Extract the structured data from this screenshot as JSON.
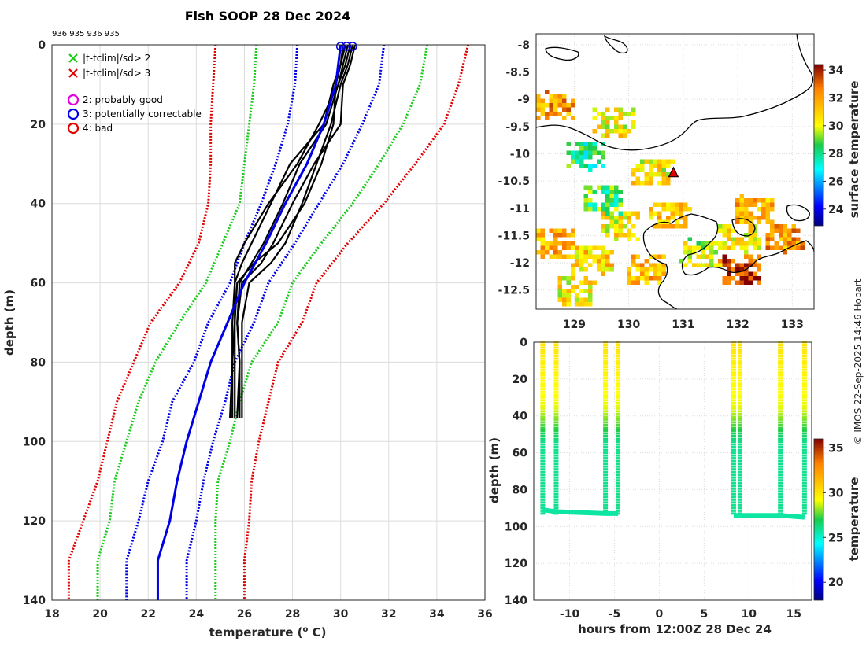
{
  "chart_data": [
    {
      "id": "profiles",
      "type": "line",
      "title": "Fish SOOP 28 Dec 2024",
      "subtitle": "936 935 936 935",
      "xlabel": "temperature (",
      "xlabel_sup": "o",
      "xlabel_end": " C)",
      "ylabel": "depth (m)",
      "xlim": [
        18,
        36
      ],
      "ylim": [
        0,
        140
      ],
      "xticks": [
        "18",
        "20",
        "22",
        "24",
        "26",
        "28",
        "30",
        "32",
        "34",
        "36"
      ],
      "yticks": [
        "0",
        "20",
        "40",
        "60",
        "80",
        "100",
        "120",
        "140"
      ],
      "legend": [
        {
          "label": "|t-tclim|/sd> 2",
          "marker": "x",
          "color": "#19cc19"
        },
        {
          "label": "|t-tclim|/sd> 3",
          "marker": "x",
          "color": "#e00000"
        },
        {
          "label": "2: probably good",
          "marker": "o",
          "color": "#e000e0"
        },
        {
          "label": "3: potentially correctable",
          "marker": "o",
          "color": "#0000e6"
        },
        {
          "label": "4: bad",
          "marker": "o",
          "color": "#e00000"
        }
      ],
      "climatology": {
        "depths": [
          0,
          10,
          20,
          30,
          40,
          50,
          60,
          70,
          80,
          90,
          100,
          110,
          120,
          130,
          140
        ],
        "mean": [
          30.0,
          29.8,
          29.3,
          28.6,
          27.7,
          26.9,
          26.0,
          25.3,
          24.6,
          24.1,
          23.6,
          23.2,
          22.9,
          22.4,
          22.4
        ],
        "series": [
          {
            "name": "-3sd",
            "color": "#e00000",
            "values": [
              24.8,
              24.7,
              24.6,
              24.6,
              24.5,
              24.1,
              23.3,
              22.1,
              21.4,
              20.7,
              20.3,
              19.9,
              19.3,
              18.7,
              18.7
            ]
          },
          {
            "name": "-2sd",
            "color": "#19cc19",
            "values": [
              26.5,
              26.4,
              26.2,
              26.0,
              25.8,
              25.1,
              24.4,
              23.3,
              22.3,
              21.6,
              21.1,
              20.6,
              20.4,
              19.9,
              19.9
            ]
          },
          {
            "name": "-1sd",
            "color": "#0000e6",
            "values": [
              28.2,
              28.1,
              27.8,
              27.3,
              26.7,
              26.0,
              25.4,
              24.5,
              23.9,
              23.0,
              22.6,
              22.0,
              21.6,
              21.1,
              21.1
            ]
          },
          {
            "name": "+1sd",
            "color": "#0000e6",
            "values": [
              31.8,
              31.6,
              30.9,
              30.1,
              29.1,
              28.1,
              27.0,
              26.4,
              25.6,
              25.2,
              24.7,
              24.3,
              24.0,
              23.6,
              23.6
            ]
          },
          {
            "name": "+2sd",
            "color": "#19cc19",
            "values": [
              33.6,
              33.3,
              32.6,
              31.6,
              30.5,
              29.2,
              28.0,
              27.4,
              26.3,
              25.8,
              25.4,
              24.9,
              24.8,
              24.8,
              24.8
            ]
          },
          {
            "name": "+3sd",
            "color": "#e00000",
            "values": [
              35.3,
              34.9,
              34.3,
              33.1,
              31.8,
              30.3,
              29.0,
              28.4,
              27.4,
              27.0,
              26.6,
              26.3,
              26.2,
              26.0,
              26.0
            ]
          }
        ]
      },
      "profiles": [
        {
          "depths": [
            0,
            5,
            10,
            20,
            30,
            40,
            50,
            55,
            60,
            70,
            80,
            94
          ],
          "values": [
            30.5,
            30.3,
            30.0,
            29.6,
            29.0,
            28.4,
            27.7,
            27.1,
            26.2,
            25.9,
            25.9,
            25.9
          ]
        },
        {
          "depths": [
            0,
            5,
            10,
            20,
            30,
            40,
            50,
            55,
            60,
            70,
            80,
            94
          ],
          "values": [
            30.3,
            30.1,
            29.9,
            29.4,
            28.3,
            27.6,
            26.8,
            26.3,
            25.8,
            25.7,
            25.8,
            25.7
          ]
        },
        {
          "depths": [
            0,
            5,
            10,
            20,
            30,
            40,
            50,
            55,
            60,
            70,
            80,
            94
          ],
          "values": [
            30.1,
            30.0,
            29.7,
            29.3,
            27.9,
            27.1,
            26.3,
            25.9,
            25.6,
            25.6,
            25.6,
            25.6
          ]
        },
        {
          "depths": [
            0,
            5,
            10,
            20,
            30,
            40,
            50,
            55,
            60,
            70,
            80,
            94
          ],
          "values": [
            30.6,
            30.4,
            30.1,
            30.0,
            28.9,
            28.0,
            27.2,
            26.7,
            25.9,
            25.7,
            25.8,
            25.8
          ]
        },
        {
          "depths": [
            0,
            5,
            10,
            20,
            30,
            40,
            50,
            55,
            60,
            70,
            80,
            94
          ],
          "values": [
            30.2,
            30.0,
            29.8,
            29.7,
            29.2,
            28.5,
            27.4,
            26.4,
            25.7,
            25.6,
            25.5,
            25.5
          ]
        },
        {
          "depths": [
            0,
            5,
            10,
            20,
            30,
            40,
            50,
            55,
            60,
            70,
            80,
            94
          ],
          "values": [
            30.4,
            30.2,
            29.9,
            29.1,
            28.2,
            27.0,
            26.0,
            25.6,
            25.6,
            25.5,
            25.5,
            25.4
          ]
        }
      ],
      "mean_profile_color": "#0000e6"
    },
    {
      "id": "map",
      "type": "heatmap",
      "xlim": [
        128.3,
        133.4
      ],
      "ylim": [
        -12.85,
        -7.8
      ],
      "xticks": [
        "129",
        "130",
        "131",
        "132",
        "133"
      ],
      "yticks": [
        "-8",
        "-8.5",
        "-9",
        "-9.5",
        "-10",
        "-10.5",
        "-11",
        "-11.5",
        "-12",
        "-12.5"
      ],
      "ytick_values": [
        -8,
        -8.5,
        -9,
        -9.5,
        -10,
        -10.5,
        -11,
        -11.5,
        -12,
        -12.5
      ],
      "xtick_values": [
        129,
        130,
        131,
        132,
        133
      ],
      "colorbar_label": "surface temperature",
      "colorbar_ticks": [
        "24",
        "26",
        "28",
        "30",
        "32",
        "34"
      ],
      "colorbar_range": [
        22.8,
        34.4
      ],
      "patches": [
        {
          "lon": 128.6,
          "lat": -9.1,
          "val": 32.0
        },
        {
          "lon": 129.2,
          "lat": -10.0,
          "val": 28.0
        },
        {
          "lon": 129.7,
          "lat": -9.4,
          "val": 30.5
        },
        {
          "lon": 130.4,
          "lat": -10.3,
          "val": 30.5
        },
        {
          "lon": 128.6,
          "lat": -11.6,
          "val": 31.5
        },
        {
          "lon": 129.3,
          "lat": -11.9,
          "val": 31.0
        },
        {
          "lon": 129.8,
          "lat": -11.3,
          "val": 30.5
        },
        {
          "lon": 130.7,
          "lat": -11.1,
          "val": 31.0
        },
        {
          "lon": 130.3,
          "lat": -12.1,
          "val": 31.5
        },
        {
          "lon": 131.3,
          "lat": -11.8,
          "val": 30.0
        },
        {
          "lon": 132.0,
          "lat": -11.5,
          "val": 30.5
        },
        {
          "lon": 132.3,
          "lat": -11.0,
          "val": 31.5
        },
        {
          "lon": 132.8,
          "lat": -11.5,
          "val": 32.0
        },
        {
          "lon": 132.0,
          "lat": -12.1,
          "val": 33.5
        },
        {
          "lon": 129.0,
          "lat": -12.5,
          "val": 30.5
        },
        {
          "lon": 129.5,
          "lat": -10.8,
          "val": 28.5
        }
      ],
      "station": {
        "lon": 130.82,
        "lat": -10.35
      }
    },
    {
      "id": "timeseries",
      "type": "scatter",
      "xlabel": "hours from 12:00Z 28 Dec 24",
      "ylabel": "depth (m)",
      "xlim": [
        -14,
        17
      ],
      "ylim": [
        0,
        140
      ],
      "xticks": [
        "-10",
        "-5",
        "0",
        "5",
        "10",
        "15"
      ],
      "xtick_values": [
        -10,
        -5,
        0,
        5,
        10,
        15
      ],
      "yticks": [
        "0",
        "20",
        "40",
        "60",
        "80",
        "100",
        "120",
        "140"
      ],
      "colorbar_label": "temperature",
      "colorbar_ticks": [
        "20",
        "25",
        "30",
        "35"
      ],
      "colorbar_range": [
        18,
        36
      ],
      "casts": [
        {
          "start": -13.0,
          "end": -11.5,
          "bottom_start": 91,
          "bottom_end": 92
        },
        {
          "start": -11.5,
          "end": -6.0,
          "bottom_start": 92,
          "bottom_end": 93
        },
        {
          "start": -6.0,
          "end": -4.6,
          "bottom_start": 93,
          "bottom_end": 93
        },
        {
          "start": 8.3,
          "end": 9.0,
          "bottom_start": 94,
          "bottom_end": 94
        },
        {
          "start": 9.0,
          "end": 13.5,
          "bottom_start": 94,
          "bottom_end": 94
        },
        {
          "start": 13.5,
          "end": 16.2,
          "bottom_start": 94,
          "bottom_end": 95
        }
      ],
      "cast_times": [
        -13.0,
        -11.5,
        -6.0,
        -4.6,
        8.3,
        9.0,
        13.5,
        16.2
      ]
    }
  ],
  "credit": "© IMOS 22-Sep-2025 14:46 Hobart"
}
